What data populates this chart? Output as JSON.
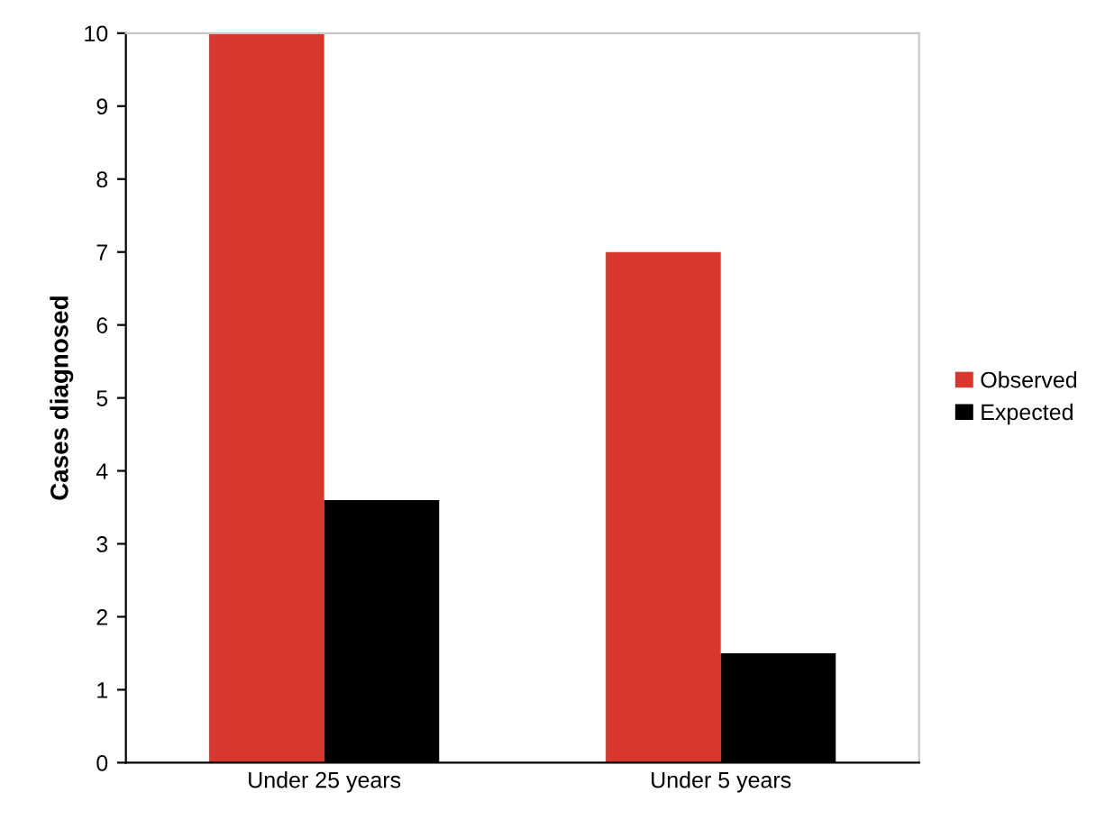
{
  "chart_data": {
    "type": "bar",
    "ylabel": "Cases diagnosed",
    "categories": [
      "Under 25 years",
      "Under 5 years"
    ],
    "series": [
      {
        "name": "Observed",
        "color": "#d8372e",
        "values": [
          10,
          7
        ]
      },
      {
        "name": "Expected",
        "color": "#000000",
        "values": [
          3.6,
          1.5
        ]
      }
    ],
    "ylim": [
      0,
      10
    ],
    "yticks": [
      0,
      1,
      2,
      3,
      4,
      5,
      6,
      7,
      8,
      9,
      10
    ],
    "legend": "right",
    "grid": false
  }
}
